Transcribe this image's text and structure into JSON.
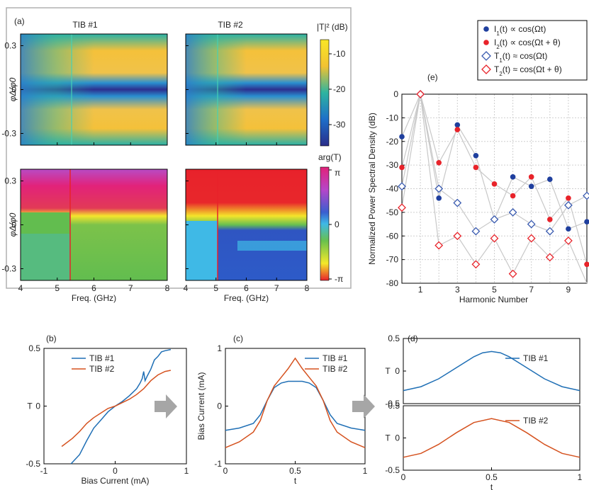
{
  "colors": {
    "tib1": "#1f6fb5",
    "tib2": "#d5521f",
    "i1": "#1f3f9e",
    "i2": "#e8232a",
    "t1": "#3a5bb0",
    "t2": "#e8232a",
    "arrow": "#a6a6a6",
    "frame": "#b0b0b0"
  },
  "panel_a": {
    "label": "(a)",
    "title_left": "TIB #1",
    "title_right": "TIB #2",
    "ylabel": "φΔ/φ0",
    "xlabel": "Freq. (GHz)",
    "yticks": [
      "0.3",
      "0",
      "-0.3"
    ],
    "xticks": [
      "4",
      "5",
      "6",
      "7",
      "8"
    ],
    "cb1_label": "|T|² (dB)",
    "cb1_ticks": [
      "-10",
      "-20",
      "-30"
    ],
    "cb2_label": "arg(T)",
    "cb2_ticks": [
      "π",
      "0",
      "-π"
    ]
  },
  "chart_data": [
    {
      "id": "b",
      "type": "line",
      "label": "(b)",
      "xlabel": "Bias Current (mA)",
      "ylabel": "T",
      "xlim": [
        -1,
        1
      ],
      "ylim": [
        -0.5,
        0.5
      ],
      "xticks": [
        "-1",
        "0",
        "1"
      ],
      "yticks": [
        "0.5",
        "0",
        "-0.5"
      ],
      "legend": [
        "TIB #1",
        "TIB #2"
      ],
      "series": [
        {
          "name": "TIB #1",
          "x": [
            -0.62,
            -0.5,
            -0.4,
            -0.3,
            -0.2,
            -0.1,
            0,
            0.1,
            0.2,
            0.3,
            0.35,
            0.38,
            0.4,
            0.42,
            0.45,
            0.5,
            0.55,
            0.6,
            0.65,
            0.7,
            0.78
          ],
          "y": [
            -0.5,
            -0.42,
            -0.3,
            -0.19,
            -0.12,
            -0.05,
            0,
            0.04,
            0.09,
            0.15,
            0.2,
            0.24,
            0.3,
            0.22,
            0.26,
            0.32,
            0.4,
            0.43,
            0.47,
            0.48,
            0.49
          ]
        },
        {
          "name": "TIB #2",
          "x": [
            -0.75,
            -0.6,
            -0.5,
            -0.4,
            -0.3,
            -0.2,
            -0.1,
            0,
            0.1,
            0.2,
            0.3,
            0.4,
            0.5,
            0.6,
            0.7,
            0.78
          ],
          "y": [
            -0.35,
            -0.28,
            -0.22,
            -0.15,
            -0.1,
            -0.06,
            -0.02,
            0,
            0.03,
            0.06,
            0.1,
            0.15,
            0.22,
            0.27,
            0.3,
            0.31
          ]
        }
      ]
    },
    {
      "id": "c",
      "type": "line",
      "label": "(c)",
      "xlabel": "t",
      "ylabel": "Bias Current (mA)",
      "xlim": [
        0,
        1
      ],
      "ylim": [
        -1,
        1
      ],
      "xticks": [
        "0",
        "0.5",
        "1"
      ],
      "yticks": [
        "1",
        "0",
        "-1"
      ],
      "legend": [
        "TIB #1",
        "TIB #2"
      ],
      "series": [
        {
          "name": "TIB #1",
          "x": [
            0,
            0.1,
            0.2,
            0.25,
            0.3,
            0.35,
            0.4,
            0.45,
            0.5,
            0.55,
            0.6,
            0.65,
            0.7,
            0.75,
            0.8,
            0.9,
            1
          ],
          "y": [
            -0.42,
            -0.38,
            -0.3,
            -0.15,
            0.1,
            0.32,
            0.4,
            0.43,
            0.43,
            0.43,
            0.4,
            0.32,
            0.1,
            -0.15,
            -0.3,
            -0.38,
            -0.42
          ]
        },
        {
          "name": "TIB #2",
          "x": [
            0,
            0.1,
            0.2,
            0.25,
            0.3,
            0.35,
            0.4,
            0.45,
            0.5,
            0.55,
            0.6,
            0.65,
            0.7,
            0.75,
            0.8,
            0.9,
            1
          ],
          "y": [
            -0.72,
            -0.62,
            -0.45,
            -0.25,
            0.1,
            0.35,
            0.5,
            0.65,
            0.83,
            0.65,
            0.5,
            0.35,
            0.1,
            -0.25,
            -0.45,
            -0.62,
            -0.72
          ]
        }
      ]
    },
    {
      "id": "d1",
      "type": "line",
      "label": "(d)",
      "xlabel": "",
      "ylabel": "T",
      "xlim": [
        0,
        1
      ],
      "ylim": [
        -0.5,
        0.5
      ],
      "yticks": [
        "0.5",
        "0",
        "-0.5"
      ],
      "legend": [
        "TIB #1"
      ],
      "series": [
        {
          "name": "TIB #1",
          "x": [
            0,
            0.1,
            0.2,
            0.3,
            0.4,
            0.45,
            0.5,
            0.55,
            0.6,
            0.7,
            0.8,
            0.9,
            1
          ],
          "y": [
            -0.3,
            -0.24,
            -0.12,
            0.05,
            0.22,
            0.28,
            0.3,
            0.28,
            0.22,
            0.05,
            -0.12,
            -0.24,
            -0.3
          ]
        }
      ]
    },
    {
      "id": "d2",
      "type": "line",
      "label": "",
      "xlabel": "t",
      "ylabel": "T",
      "xlim": [
        0,
        1
      ],
      "ylim": [
        -0.5,
        0.5
      ],
      "xticks": [
        "0",
        "0.5",
        "1"
      ],
      "yticks": [
        "0.5",
        "0",
        "-0.5"
      ],
      "legend": [
        "TIB #2"
      ],
      "series": [
        {
          "name": "TIB #2",
          "x": [
            0,
            0.1,
            0.2,
            0.3,
            0.4,
            0.5,
            0.6,
            0.7,
            0.8,
            0.9,
            1
          ],
          "y": [
            -0.3,
            -0.24,
            -0.1,
            0.08,
            0.24,
            0.3,
            0.24,
            0.08,
            -0.1,
            -0.24,
            -0.3
          ]
        }
      ]
    },
    {
      "id": "e",
      "type": "scatter",
      "label": "(e)",
      "xlabel": "Harmonic Number",
      "ylabel": "Normalized Power Spectral Density (dB)",
      "xlim": [
        0,
        10
      ],
      "ylim": [
        -80,
        0
      ],
      "xticks": [
        "1",
        "3",
        "5",
        "7",
        "9"
      ],
      "yticks": [
        "0",
        "-10",
        "-20",
        "-30",
        "-40",
        "-50",
        "-60",
        "-70",
        "-80"
      ],
      "legend": [
        "I1(t) ∝ cos(Ωt)",
        "I2(t) ∝ cos(Ωt + θ)",
        "T1(t) ≈ cos(Ωt)",
        "T2(t) ≈ cos(Ωt + θ)"
      ],
      "legend_parts": [
        {
          "a": "I",
          "sub": "1",
          "b": "(t) ∝ cos(Ωt)"
        },
        {
          "a": "I",
          "sub": "2",
          "b": "(t) ∝ cos(Ωt + θ)"
        },
        {
          "a": "T",
          "sub": "1",
          "b": "(t) ≈ cos(Ωt)"
        },
        {
          "a": "T",
          "sub": "2",
          "b": "(t) ≈ cos(Ωt + θ)"
        }
      ],
      "series": [
        {
          "name": "I1(t) ∝ cos(Ωt)",
          "marker": "circle",
          "x": [
            0,
            1,
            2,
            3,
            4,
            5,
            6,
            7,
            8,
            9,
            10
          ],
          "y": [
            -18,
            0,
            -44,
            -13,
            -26,
            -53,
            -35,
            -39,
            -36,
            -57,
            -54
          ]
        },
        {
          "name": "I2(t) ∝ cos(Ωt + θ)",
          "marker": "circle",
          "x": [
            0,
            1,
            2,
            3,
            4,
            5,
            6,
            7,
            8,
            9,
            10
          ],
          "y": [
            -31,
            0,
            -29,
            -15,
            -31,
            -38,
            -43,
            -35,
            -53,
            -44,
            -72
          ]
        },
        {
          "name": "T1(t) ≈ cos(Ωt)",
          "marker": "diamond",
          "x": [
            0,
            1,
            2,
            3,
            4,
            5,
            6,
            7,
            8,
            9,
            10
          ],
          "y": [
            -39,
            0,
            -40,
            -46,
            -58,
            -53,
            -50,
            -55,
            -58,
            -47,
            -43
          ]
        },
        {
          "name": "T2(t) ≈ cos(Ωt + θ)",
          "marker": "diamond",
          "x": [
            0,
            1,
            2,
            3,
            4,
            5,
            6,
            7,
            8,
            9,
            10
          ],
          "y": [
            -48,
            0,
            -64,
            -60,
            -72,
            -61,
            -76,
            -61,
            -69,
            -62,
            -84
          ]
        }
      ]
    }
  ]
}
